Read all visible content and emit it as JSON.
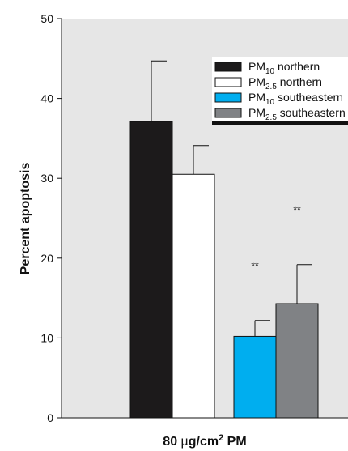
{
  "chart_data": {
    "type": "bar",
    "xlabel": "80 µg/cm² PM",
    "xlabel_parts": {
      "prefix": "80 ",
      "mu": "µ",
      "unit_mid": "g/cm",
      "sup": "2",
      "suffix": " PM"
    },
    "ylabel": "Percent apoptosis",
    "ylim": [
      0,
      50
    ],
    "yticks": [
      0,
      10,
      20,
      30,
      40,
      50
    ],
    "grid": false,
    "background_color": "#e6e6e6",
    "legend_position": "top-right",
    "series": [
      {
        "name": "PM10 northern",
        "label_main": "PM",
        "label_sub": "10",
        "label_rest": " northern",
        "value": 37.1,
        "error": 7.6,
        "color": "#1c1a1b",
        "annotation": ""
      },
      {
        "name": "PM2.5 northern",
        "label_main": "PM",
        "label_sub": "2.5",
        "label_rest": " northern",
        "value": 30.5,
        "error": 3.6,
        "color": "#ffffff",
        "annotation": ""
      },
      {
        "name": "PM10 southeastern",
        "label_main": "PM",
        "label_sub": "10",
        "label_rest": " southeastern",
        "value": 10.2,
        "error": 2.0,
        "color": "#00aeef",
        "annotation": "**"
      },
      {
        "name": "PM2.5 southeastern",
        "label_main": "PM",
        "label_sub": "2.5",
        "label_rest": " southeastern",
        "value": 14.3,
        "error": 4.9,
        "color": "#808285",
        "annotation": "**"
      }
    ]
  }
}
